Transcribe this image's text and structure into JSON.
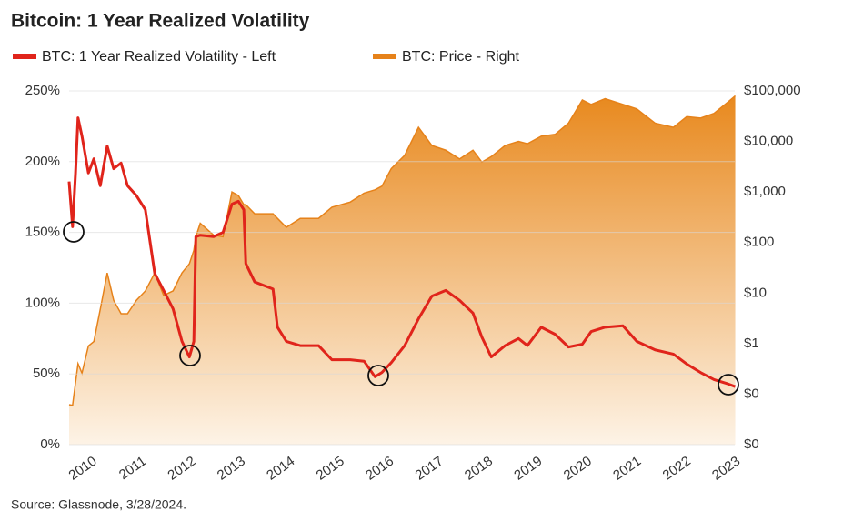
{
  "chart_data": {
    "type": "line",
    "title": "Bitcoin: 1 Year Realized Volatility",
    "source": "Source: Glassnode, 3/28/2024.",
    "x": [
      2009.65,
      2009.72,
      2009.78,
      2009.83,
      2009.91,
      2010.04,
      2010.15,
      2010.28,
      2010.42,
      2010.55,
      2010.7,
      2010.83,
      2011.01,
      2011.19,
      2011.38,
      2011.56,
      2011.75,
      2011.93,
      2012.08,
      2012.17,
      2012.21,
      2012.3,
      2012.57,
      2012.76,
      2012.94,
      2013.07,
      2013.18,
      2013.22,
      2013.4,
      2013.77,
      2013.86,
      2014.04,
      2014.32,
      2014.69,
      2014.96,
      2015.33,
      2015.61,
      2015.83,
      2015.97,
      2016.16,
      2016.43,
      2016.71,
      2016.98,
      2017.26,
      2017.54,
      2017.81,
      2017.99,
      2018.18,
      2018.46,
      2018.73,
      2018.91,
      2019.19,
      2019.47,
      2019.74,
      2020.02,
      2020.2,
      2020.48,
      2020.84,
      2021.12,
      2021.49,
      2021.86,
      2022.13,
      2022.41,
      2022.68,
      2022.96,
      2023.11
    ],
    "series": [
      {
        "name": "BTC: 1 Year Realized Volatility - Left",
        "color": "#e0241b",
        "values": [
          186,
          154,
          192,
          231,
          218,
          192,
          202,
          183,
          211,
          195,
          199,
          183,
          176,
          166,
          121,
          109,
          96,
          73,
          62,
          73,
          147,
          148,
          147,
          150,
          170,
          172,
          166,
          128,
          115,
          110,
          83,
          73,
          70,
          70,
          60,
          60,
          59,
          48,
          51,
          58,
          70,
          89,
          105,
          109,
          102,
          93,
          76,
          62,
          70,
          75,
          70,
          83,
          78,
          69,
          71,
          80,
          83,
          84,
          73,
          67,
          64,
          57,
          51,
          46,
          43,
          41
        ]
      },
      {
        "name": "BTC: Price - Right",
        "color": "#e6821a",
        "axis": "y2",
        "values": [
          0.062,
          0.06,
          0.17,
          0.4,
          0.26,
          0.9,
          1.1,
          4.8,
          25,
          7.2,
          3.9,
          3.9,
          7.2,
          11,
          25,
          9,
          11,
          25,
          38,
          70,
          130,
          240,
          140,
          130,
          1000,
          850,
          560,
          560,
          370,
          370,
          300,
          200,
          300,
          300,
          500,
          630,
          950,
          1100,
          1300,
          2900,
          5300,
          19000,
          8300,
          6700,
          4500,
          6700,
          3900,
          5000,
          8300,
          10000,
          9000,
          12700,
          13800,
          23000,
          66000,
          54000,
          70000,
          54000,
          44000,
          23000,
          19000,
          31000,
          29000,
          36000,
          60000,
          80000
        ]
      }
    ],
    "xlim": [
      2009.65,
      2023.1
    ],
    "xticks": [
      2010,
      2011,
      2012,
      2013,
      2014,
      2015,
      2016,
      2017,
      2018,
      2019,
      2020,
      2021,
      2022,
      2023
    ],
    "ylim": [
      0,
      250
    ],
    "yticks": [
      {
        "value": 0,
        "label": "0%"
      },
      {
        "value": 50,
        "label": "50%"
      },
      {
        "value": 100,
        "label": "100%"
      },
      {
        "value": 150,
        "label": "150%"
      },
      {
        "value": 200,
        "label": "200%"
      },
      {
        "value": 250,
        "label": "250%"
      }
    ],
    "y2lim": [
      0.01,
      100000
    ],
    "y2_log": true,
    "y2ticks": [
      {
        "value": 0.01,
        "label": "$0"
      },
      {
        "value": 0.1,
        "label": "$0"
      },
      {
        "value": 1,
        "label": "$1"
      },
      {
        "value": 10,
        "label": "$10"
      },
      {
        "value": 100,
        "label": "$100"
      },
      {
        "value": 1000,
        "label": "$1,000"
      },
      {
        "value": 10000,
        "label": "$10,000"
      },
      {
        "value": 100000,
        "label": "$100,000"
      }
    ],
    "grid": true
  }
}
